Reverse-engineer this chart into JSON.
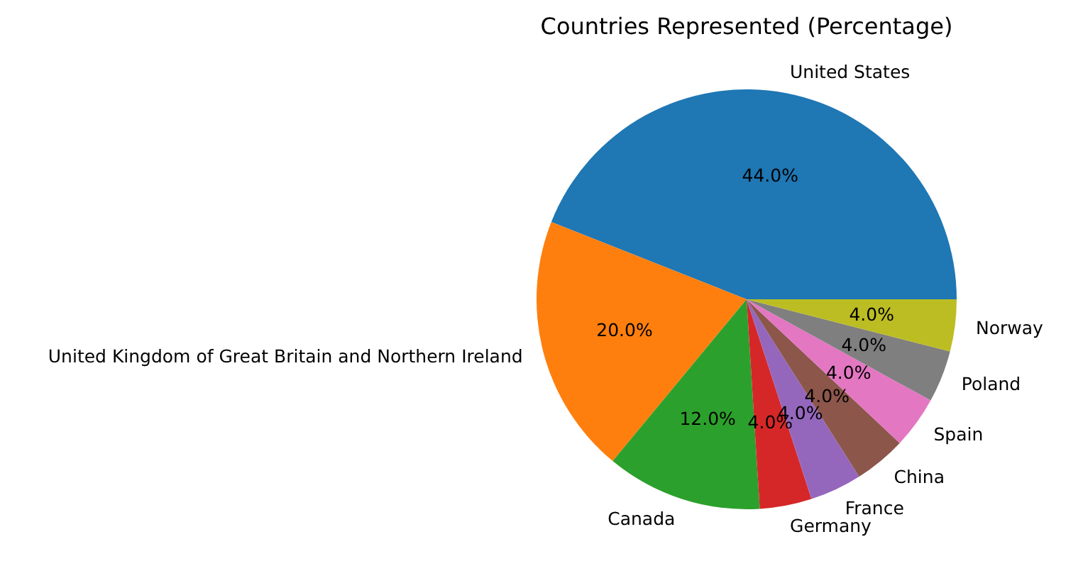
{
  "chart_data": {
    "type": "pie",
    "title": "Countries Represented (Percentage)",
    "categories": [
      "United States",
      "United Kingdom of Great Britain and Northern Ireland",
      "Canada",
      "Germany",
      "France",
      "China",
      "Spain",
      "Poland",
      "Norway"
    ],
    "values": [
      44,
      20,
      12,
      4,
      4,
      4,
      4,
      4,
      4
    ],
    "colors": [
      "#1f77b4",
      "#ff7f0e",
      "#2ca02c",
      "#d62728",
      "#9467bd",
      "#8c564b",
      "#e377c2",
      "#7f7f7f",
      "#bcbd22"
    ],
    "value_labels": [
      "44.0%",
      "20.0%",
      "12.0%",
      "4.0%",
      "4.0%",
      "4.0%",
      "4.0%",
      "4.0%",
      "4.0%"
    ]
  }
}
